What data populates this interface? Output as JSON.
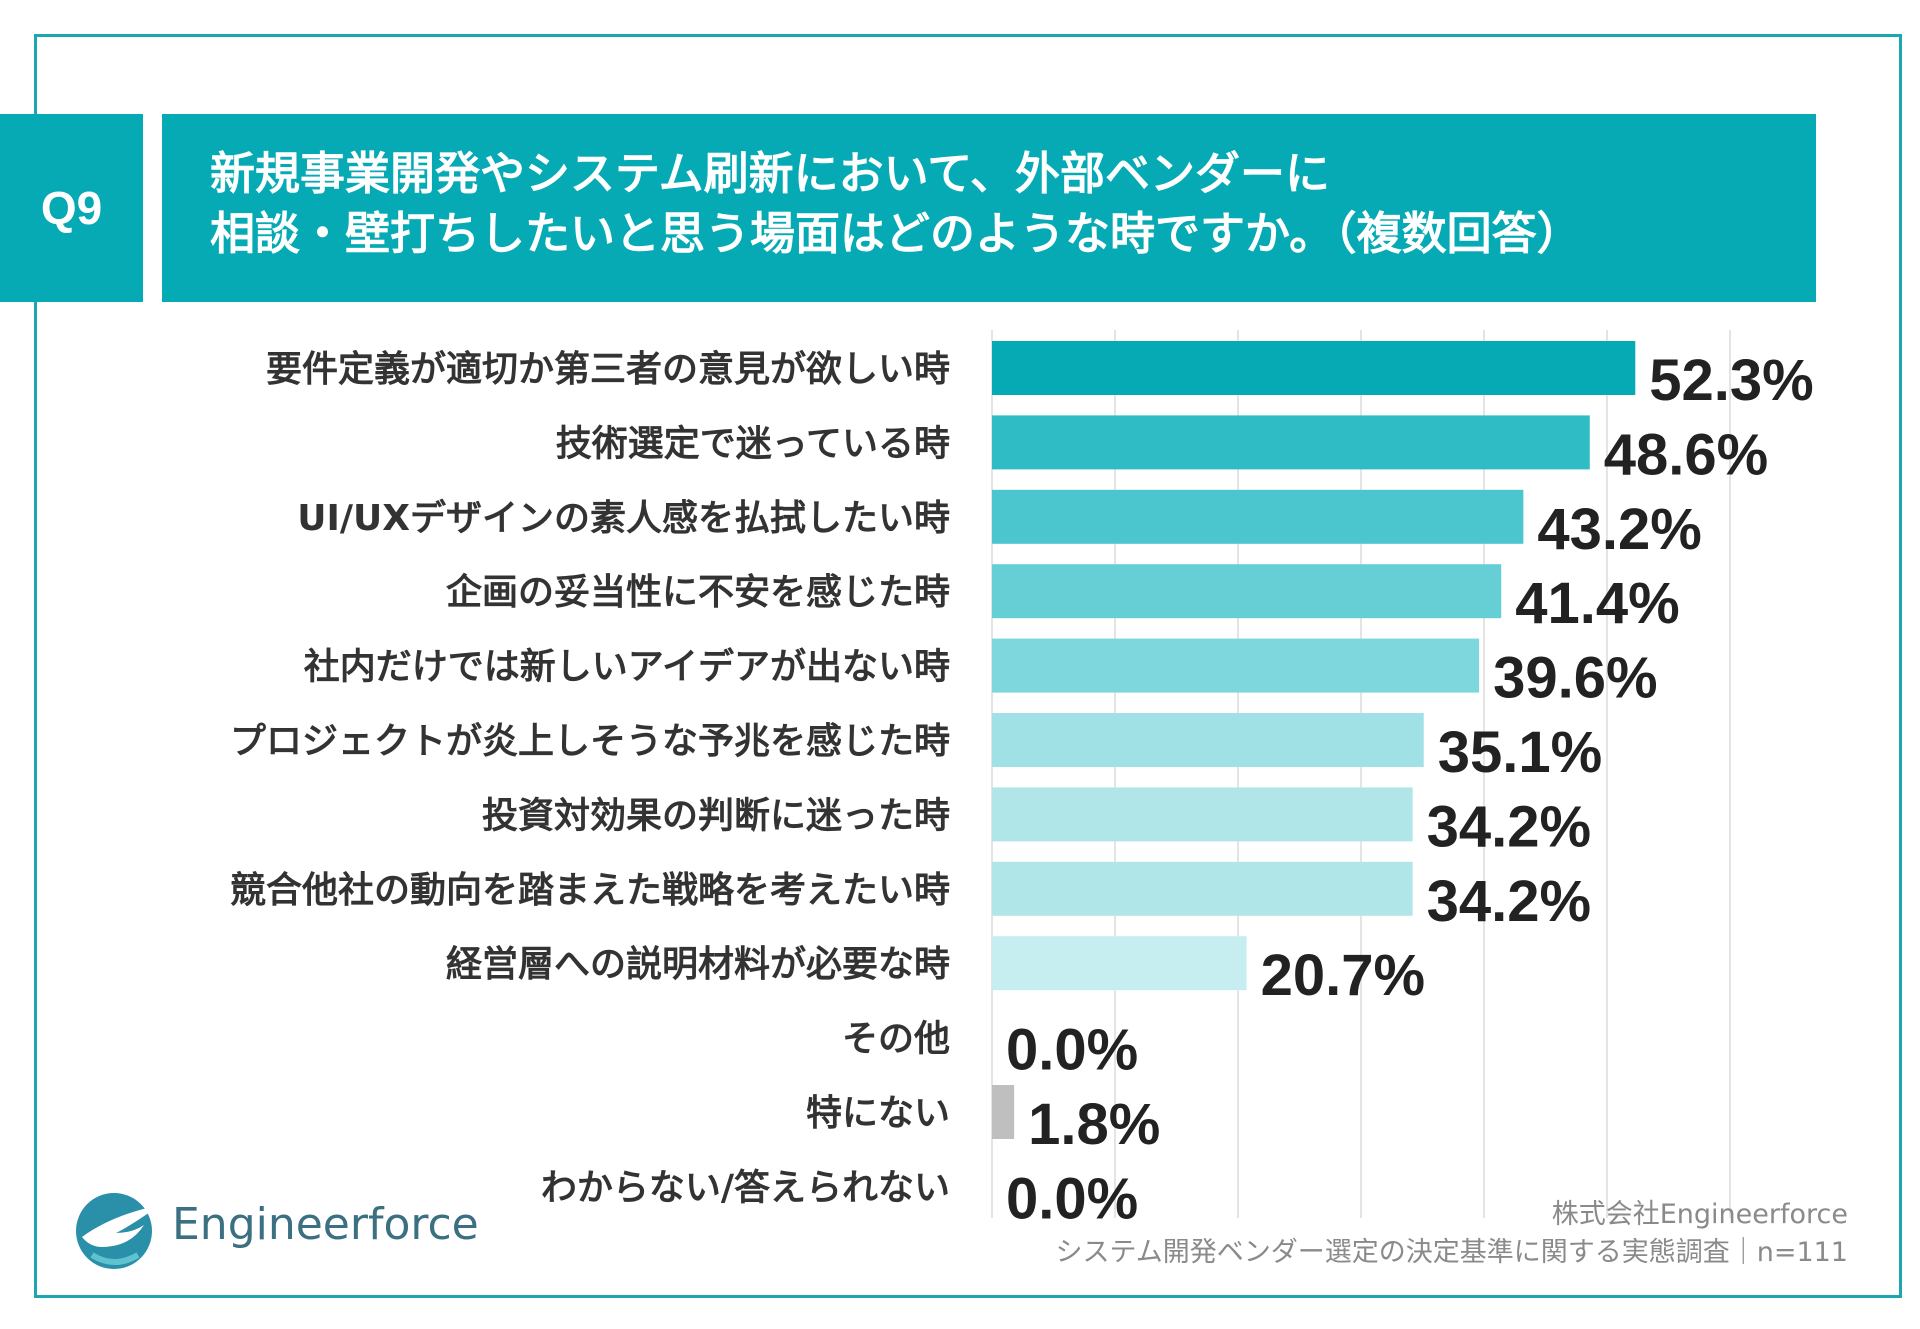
{
  "header": {
    "question_number": "Q9",
    "title_line1": "新規事業開発やシステム刷新において、外部ベンダーに",
    "title_line2": "相談・壁打ちしたいと思う場面はどのような時ですか。（複数回答）"
  },
  "chart_data": {
    "type": "bar",
    "orientation": "horizontal",
    "title": "新規事業開発やシステム刷新において、外部ベンダーに相談・壁打ちしたいと思う場面はどのような時ですか。（複数回答）",
    "categories": [
      "要件定義が適切か第三者の意見が欲しい時",
      "技術選定で迷っている時",
      "UI/UXデザインの素人感を払拭したい時",
      "企画の妥当性に不安を感じた時",
      "社内だけでは新しいアイデアが出ない時",
      "プロジェクトが炎上しそうな予兆を感じた時",
      "投資対効果の判断に迷った時",
      "競合他社の動向を踏まえた戦略を考えたい時",
      "経営層への説明材料が必要な時",
      "その他",
      "特にない",
      "わからない/答えられない"
    ],
    "values": [
      52.3,
      48.6,
      43.2,
      41.4,
      39.6,
      35.1,
      34.2,
      34.2,
      20.7,
      0.0,
      1.8,
      0.0
    ],
    "value_labels": [
      "52.3%",
      "48.6%",
      "43.2%",
      "41.4%",
      "39.6%",
      "35.1%",
      "34.2%",
      "34.2%",
      "20.7%",
      "0.0%",
      "1.8%",
      "0.0%"
    ],
    "bar_colors": [
      "#05aab4",
      "#2fbcc5",
      "#4cc6ce",
      "#66cfd6",
      "#7ed7dd",
      "#a0e1e5",
      "#b1e6e9",
      "#b1e6e9",
      "#c6eef0",
      "#c6eef0",
      "#bfbfbf",
      "#bfbfbf"
    ],
    "xlim": [
      0,
      60
    ],
    "grid_step": 10,
    "grid": true,
    "xlabel": "",
    "ylabel": ""
  },
  "footer": {
    "company": "株式会社Engineerforce",
    "survey": "システム開発ベンダー選定の決定基準に関する実態調査｜n=111"
  },
  "logo": {
    "text": "Engineerforce",
    "icon": "engineerforce-bird-logo-icon"
  },
  "colors": {
    "accent": "#05aab4",
    "frame": "#1aa7b0",
    "text": "#333333",
    "source": "#8a8a8a"
  }
}
